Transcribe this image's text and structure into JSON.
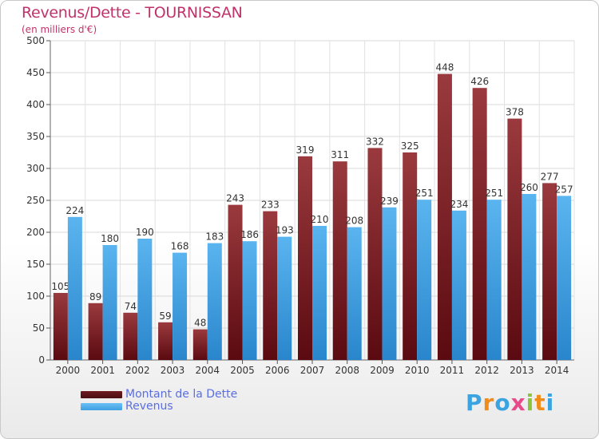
{
  "header": {
    "title": "Revenus/Dette - TOURNISSAN",
    "subtitle": "(en milliers d'€)"
  },
  "chart_data": {
    "type": "bar",
    "title": "Revenus/Dette - TOURNISSAN",
    "subtitle": "(en milliers d'€)",
    "xlabel": "",
    "ylabel": "",
    "ylim": [
      0,
      500
    ],
    "yticks": [
      0,
      50,
      100,
      150,
      200,
      250,
      300,
      350,
      400,
      450,
      500
    ],
    "grid": true,
    "legend_position": "bottom-left",
    "categories": [
      "2000",
      "2001",
      "2002",
      "2003",
      "2004",
      "2005",
      "2006",
      "2007",
      "2008",
      "2009",
      "2010",
      "2011",
      "2012",
      "2013",
      "2014"
    ],
    "series": [
      {
        "name": "Montant de la Dette",
        "color": "#8b2a2f",
        "values": [
          105,
          89,
          74,
          59,
          48,
          243,
          233,
          319,
          311,
          332,
          325,
          448,
          426,
          378,
          277
        ]
      },
      {
        "name": "Revenus",
        "color": "#3f9fe0",
        "values": [
          224,
          180,
          190,
          168,
          183,
          186,
          193,
          210,
          208,
          239,
          251,
          234,
          251,
          260,
          257
        ]
      }
    ]
  },
  "legend": {
    "items": [
      {
        "label": "Montant de la Dette",
        "color": "#6e1a1f"
      },
      {
        "label": "Revenus",
        "color": "#3f9fe0"
      }
    ]
  },
  "logo": {
    "text": "Proxiti",
    "letters": [
      "P",
      "r",
      "o",
      "x",
      "i",
      "t",
      "i"
    ],
    "colors": [
      "#3aa3e0",
      "#f08c1a",
      "#3aa3e0",
      "#e84a8a",
      "#8cc43c",
      "#f08c1a",
      "#3aa3e0"
    ]
  }
}
